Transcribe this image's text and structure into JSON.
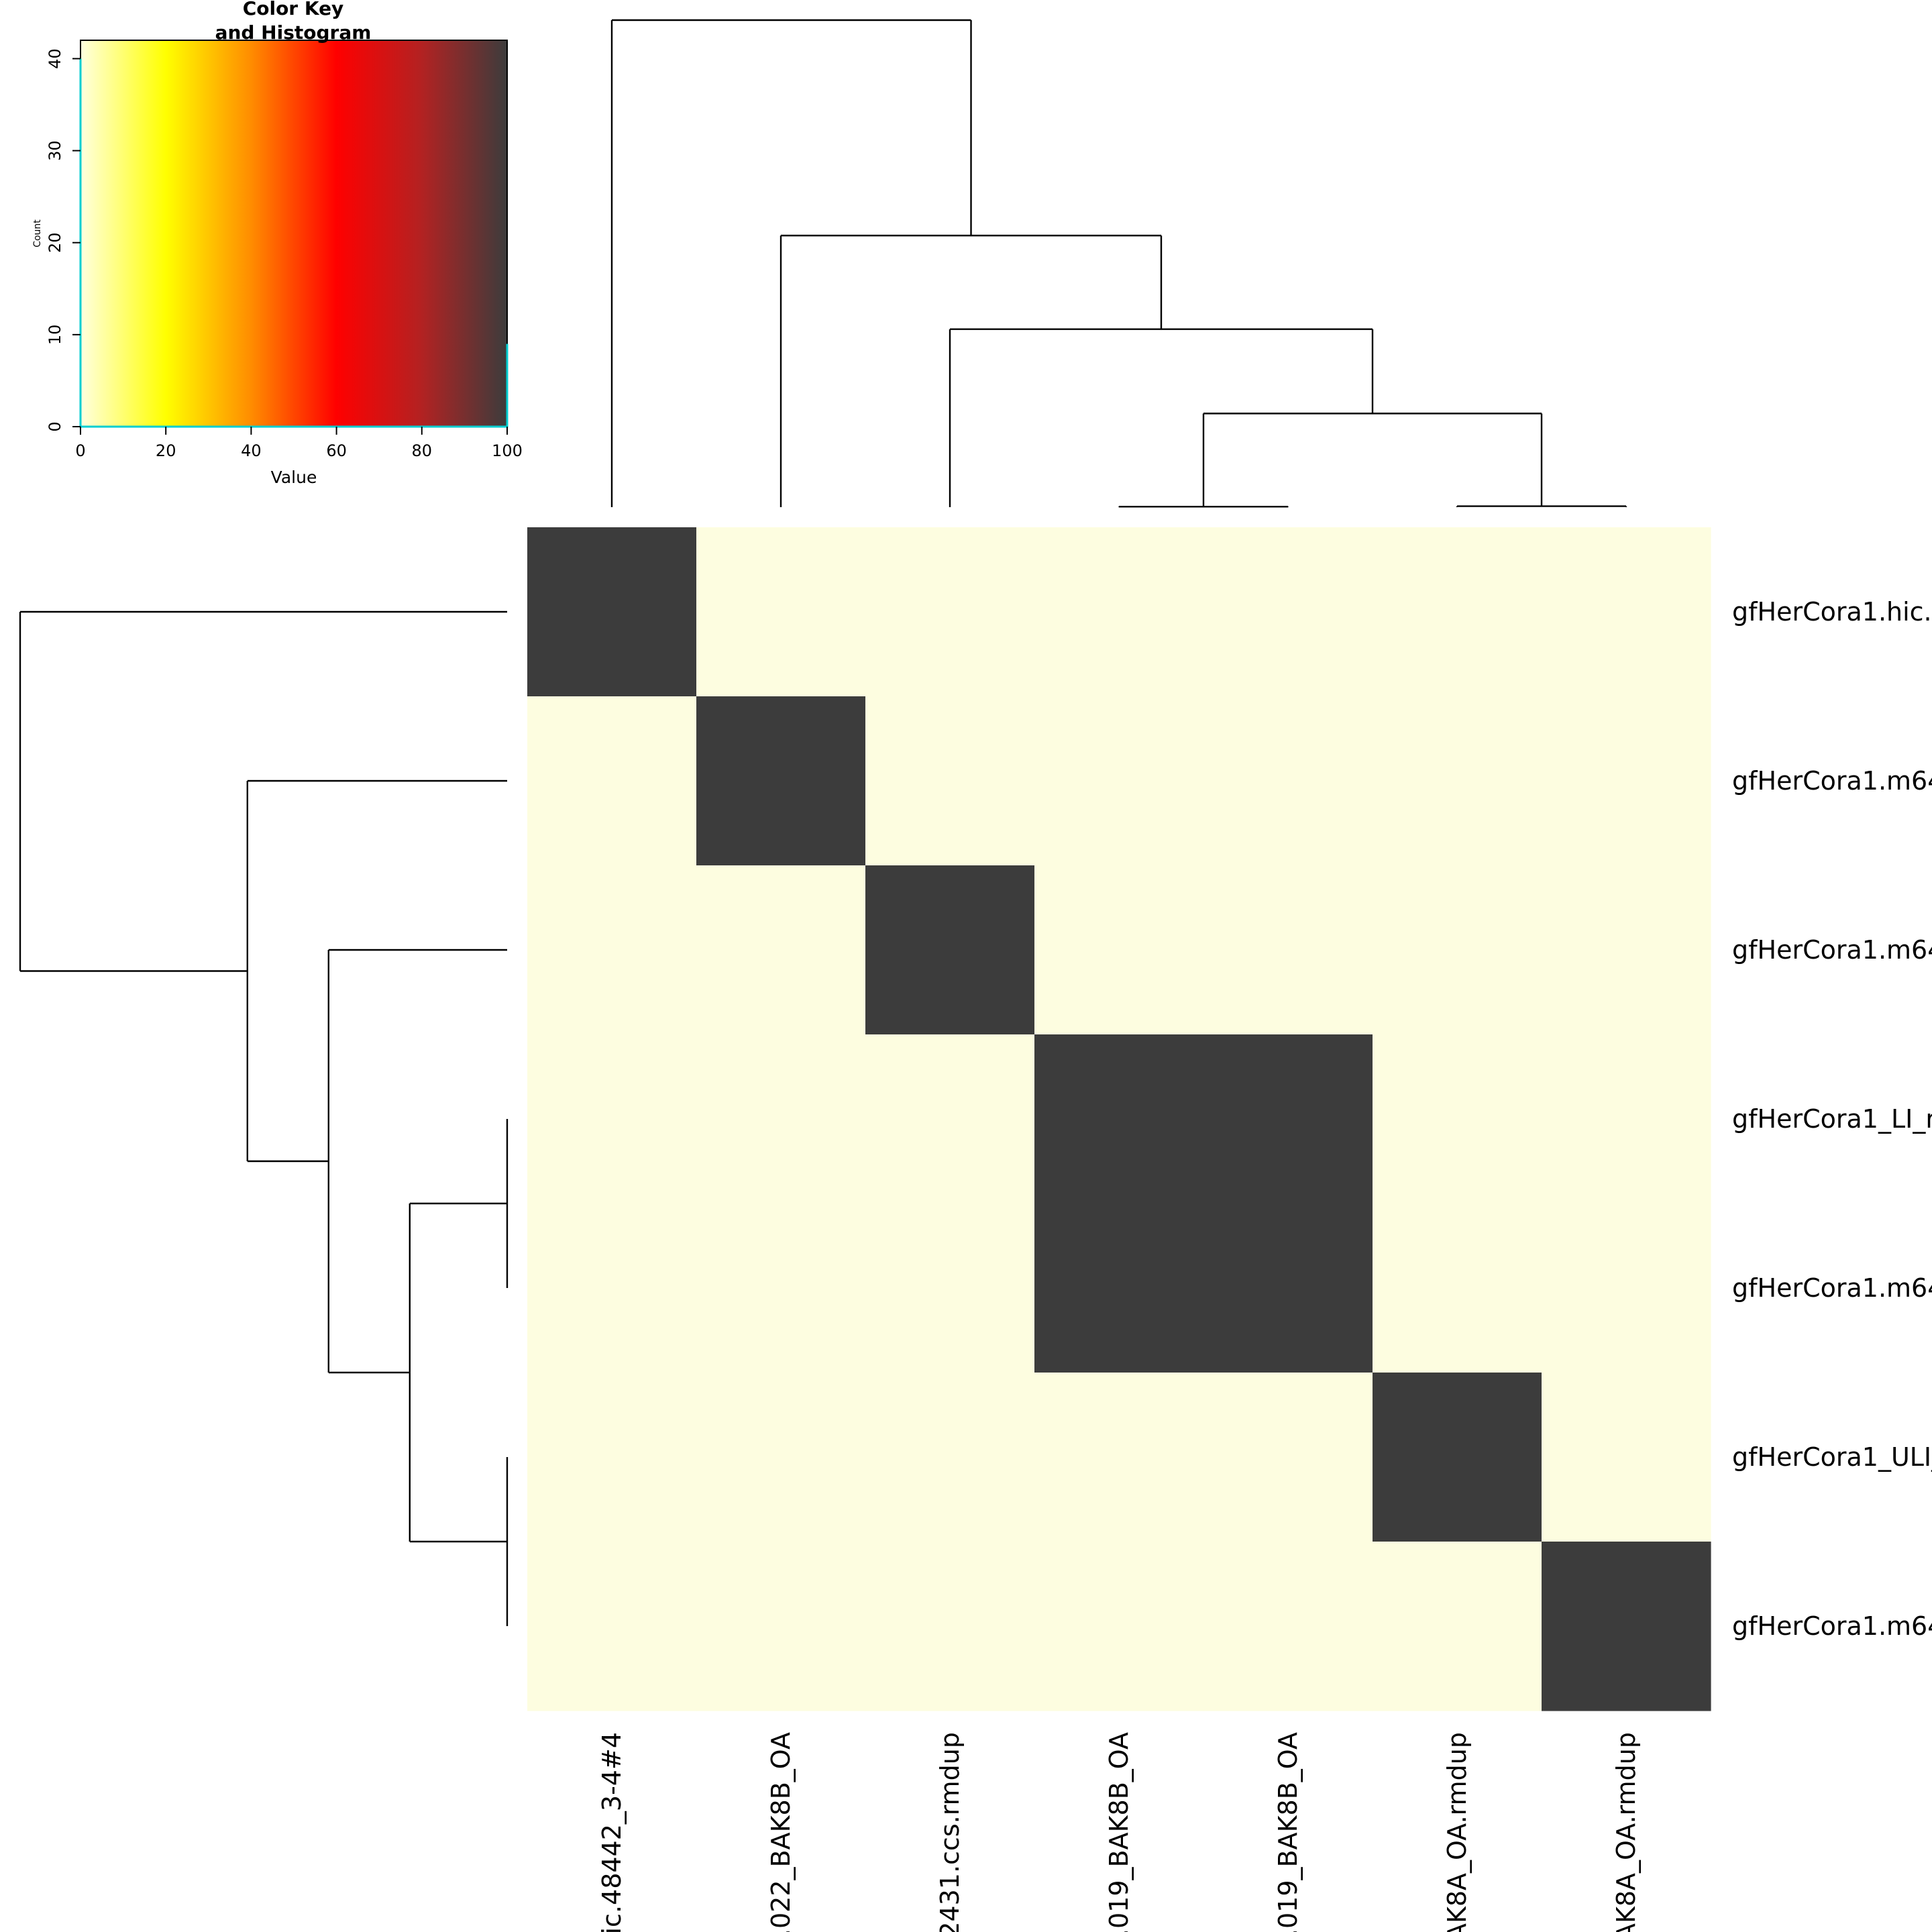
{
  "chart_data": {
    "type": "heatmap",
    "rows": [
      "gfHerCora1.hic.",
      "gfHerCora1.m64",
      "gfHerCora1.m64",
      "gfHerCora1_LI_r",
      "gfHerCora1.m64",
      "gfHerCora1_ULI_",
      "gfHerCora1.m64"
    ],
    "columns": [
      "ic.48442_3-4#4",
      ".022_BAK8B_OA",
      "2431.ccs.rmdup",
      ".019_BAK8B_OA",
      ".019_BAK8B_OA",
      "AK8A_OA.rmdup",
      "AK8A_OA.rmdup"
    ],
    "values": [
      [
        100,
        0,
        0,
        0,
        0,
        0,
        0
      ],
      [
        0,
        100,
        0,
        0,
        0,
        0,
        0
      ],
      [
        0,
        0,
        100,
        0,
        0,
        0,
        0
      ],
      [
        0,
        0,
        0,
        100,
        100,
        0,
        0
      ],
      [
        0,
        0,
        0,
        100,
        100,
        0,
        0
      ],
      [
        0,
        0,
        0,
        0,
        0,
        100,
        0
      ],
      [
        0,
        0,
        0,
        0,
        0,
        0,
        100
      ]
    ],
    "dendrogram_height": [
      0,
      44
    ],
    "col_dendrogram": [
      {
        "a": 3,
        "b": 4,
        "h": 0.05
      },
      {
        "a": 5,
        "b": 6,
        "h": 0.1
      },
      {
        "a": "m0",
        "b": "m1",
        "h": 10
      },
      {
        "a": 2,
        "b": "m2",
        "h": 19
      },
      {
        "a": 1,
        "b": "m3",
        "h": 29
      },
      {
        "a": 0,
        "b": "m4",
        "h": 52
      }
    ],
    "row_dendrogram": [
      {
        "a": 3,
        "b": 4,
        "h": 0
      },
      {
        "a": 5,
        "b": 6,
        "h": 0
      },
      {
        "a": "m0",
        "b": "m1",
        "h": 6
      },
      {
        "a": 2,
        "b": "m2",
        "h": 11
      },
      {
        "a": 1,
        "b": "m3",
        "h": 16
      },
      {
        "a": 0,
        "b": "m4",
        "h": 30
      }
    ],
    "color_key": {
      "title": "Color Key\nand Histogram",
      "xlabel": "Value",
      "ylabel": "Count",
      "xlim": [
        0,
        100
      ],
      "ylim": [
        0,
        42
      ],
      "x_ticks": [
        0,
        20,
        40,
        60,
        80,
        100
      ],
      "y_ticks": [
        0,
        10,
        20,
        30,
        40
      ],
      "histogram": [
        {
          "value": 0,
          "count": 40
        },
        {
          "value": 100,
          "count": 9
        }
      ],
      "palette": [
        "#ffffe0",
        "#ffff00",
        "#ff8c00",
        "#ff0000",
        "#b22222",
        "#3c3c3c"
      ],
      "histogram_color": "#00ced1"
    },
    "cell_colors": {
      "low": "#fdfde0",
      "high": "#3c3c3c"
    }
  }
}
